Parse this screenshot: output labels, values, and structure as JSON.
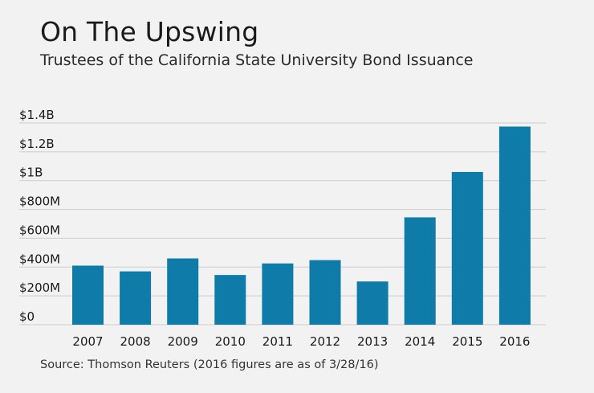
{
  "title": "On The Upswing",
  "subtitle": "Trustees of the California State University Bond Issuance",
  "source": "Source: Thomson Reuters (2016 figures are as of 3/28/16)",
  "colors": {
    "bar": "#0f7ba9",
    "grid": "#cccccc",
    "background": "#f1f2f1"
  },
  "chart_data": {
    "type": "bar",
    "categories": [
      "2007",
      "2008",
      "2009",
      "2010",
      "2011",
      "2012",
      "2013",
      "2014",
      "2015",
      "2016"
    ],
    "values": [
      410,
      370,
      460,
      345,
      425,
      448,
      300,
      745,
      1060,
      1375
    ],
    "units": "millions USD",
    "ylim": [
      0,
      1400
    ],
    "yticks": [
      {
        "value": 0,
        "label": "$0"
      },
      {
        "value": 200,
        "label": "$200M"
      },
      {
        "value": 400,
        "label": "$400M"
      },
      {
        "value": 600,
        "label": "$600M"
      },
      {
        "value": 800,
        "label": "$800M"
      },
      {
        "value": 1000,
        "label": "$1B"
      },
      {
        "value": 1200,
        "label": "$1.2B"
      },
      {
        "value": 1400,
        "label": "$1.4B"
      }
    ],
    "grid": true,
    "legend": "none"
  }
}
